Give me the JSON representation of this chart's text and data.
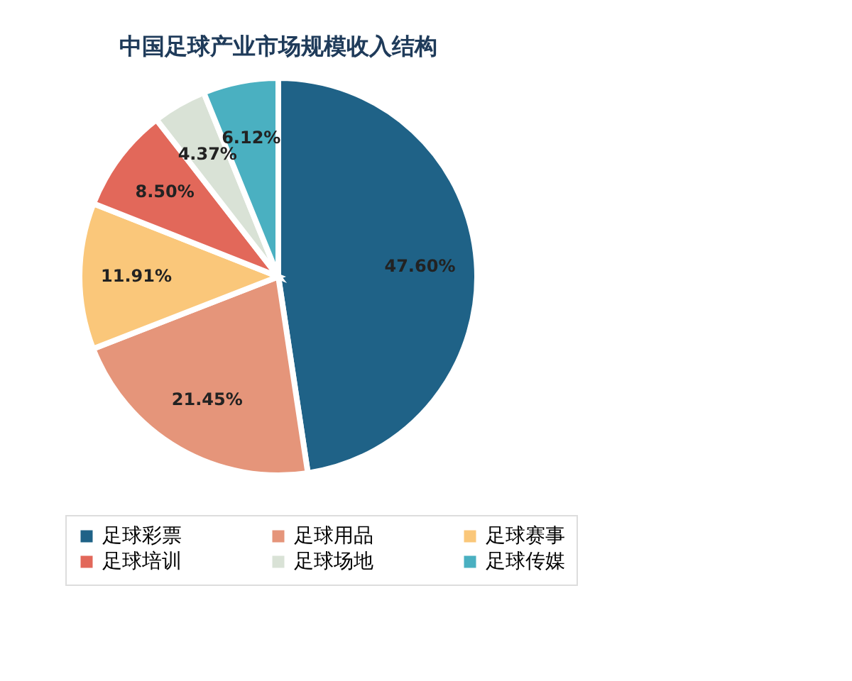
{
  "chart_data": {
    "type": "pie",
    "title": "中国足球产业市场规模收入结构",
    "categories": [
      "足球彩票",
      "足球用品",
      "足球赛事",
      "足球培训",
      "足球场地",
      "足球传媒"
    ],
    "values": [
      47.6,
      21.45,
      11.91,
      8.5,
      4.37,
      6.12
    ],
    "colors": [
      "#1f6287",
      "#e5957a",
      "#fac77a",
      "#e2685a",
      "#d9e2d6",
      "#4ab0c1"
    ],
    "value_labels": [
      "47.60%",
      "21.45%",
      "11.91%",
      "8.50%",
      "4.37%",
      "6.12%"
    ],
    "legend": "bottom"
  }
}
